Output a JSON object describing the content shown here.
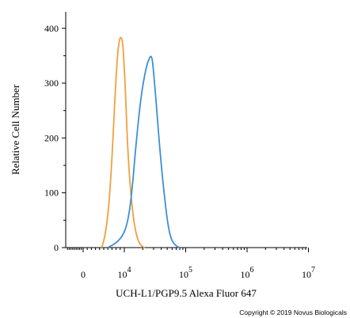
{
  "chart_data": {
    "type": "line",
    "xlabel": "UCH-L1/PGP9.5 Alexa Fluor 647",
    "ylabel": "Relative Cell Number",
    "x_scale": "log",
    "ylim": [
      0,
      430
    ],
    "grid": false,
    "legend": "none",
    "y_ticks": [
      {
        "value": 0,
        "label": "0"
      },
      {
        "value": 100,
        "label": "100"
      },
      {
        "value": 200,
        "label": "200"
      },
      {
        "value": 300,
        "label": "300"
      },
      {
        "value": 400,
        "label": "400"
      }
    ],
    "x_ticks": [
      {
        "value": 0,
        "base": "0",
        "exp": ""
      },
      {
        "value": 10000,
        "base": "10",
        "exp": "4"
      },
      {
        "value": 100000,
        "base": "10",
        "exp": "5"
      },
      {
        "value": 1000000,
        "base": "10",
        "exp": "6"
      },
      {
        "value": 10000000,
        "base": "10",
        "exp": "7"
      }
    ],
    "series": [
      {
        "color": "#f0a040",
        "x": [
          4500,
          5300,
          6200,
          7000,
          7700,
          8300,
          8800,
          9200,
          9600,
          9900,
          10300,
          10800,
          11500,
          12500,
          13800,
          15500,
          17500,
          19500,
          21500
        ],
        "y": [
          0,
          20,
          70,
          160,
          270,
          350,
          380,
          385,
          375,
          340,
          300,
          240,
          170,
          110,
          60,
          25,
          8,
          2,
          0
        ]
      },
      {
        "color": "#3d8fd6",
        "x": [
          6000,
          8000,
          10000,
          12000,
          13500,
          15000,
          16500,
          18500,
          21000,
          23500,
          25500,
          27000,
          28500,
          30000,
          32500,
          36000,
          40000,
          45000,
          50000,
          56000,
          63000,
          72000,
          80000
        ],
        "y": [
          0,
          8,
          25,
          60,
          110,
          170,
          220,
          270,
          310,
          335,
          345,
          350,
          345,
          320,
          275,
          210,
          150,
          95,
          50,
          20,
          8,
          2,
          0
        ]
      }
    ]
  },
  "copyright": "Copyright © 2019 Novus Biologicals"
}
